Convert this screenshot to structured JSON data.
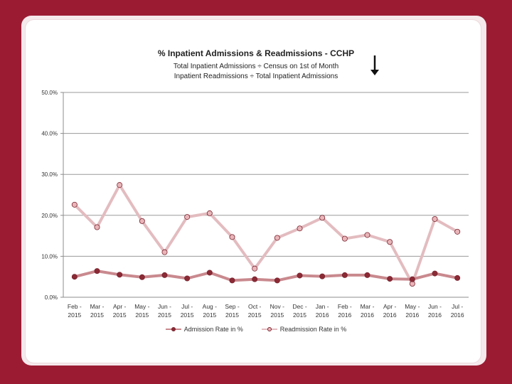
{
  "chart_data": {
    "type": "line",
    "title": "% Inpatient Admissions & Readmissions - CCHP",
    "subtitle_lines": [
      "Total Inpatient Admissions ÷ Census on 1st of Month",
      "Inpatient Readmissions ÷ Total Inpatient Admissions"
    ],
    "categories": [
      [
        "Feb -",
        "2015"
      ],
      [
        "Mar -",
        "2015"
      ],
      [
        "Apr -",
        "2015"
      ],
      [
        "May -",
        "2015"
      ],
      [
        "Jun -",
        "2015"
      ],
      [
        "Jul -",
        "2015"
      ],
      [
        "Aug -",
        "2015"
      ],
      [
        "Sep -",
        "2015"
      ],
      [
        "Oct -",
        "2015"
      ],
      [
        "Nov -",
        "2015"
      ],
      [
        "Dec -",
        "2015"
      ],
      [
        "Jan -",
        "2016"
      ],
      [
        "Feb -",
        "2016"
      ],
      [
        "Mar -",
        "2016"
      ],
      [
        "Apr -",
        "2016"
      ],
      [
        "May -",
        "2016"
      ],
      [
        "Jun -",
        "2016"
      ],
      [
        "Jul -",
        "2016"
      ]
    ],
    "yticks": [
      "0.0%",
      "10.0%",
      "20.0%",
      "30.0%",
      "40.0%",
      "50.0%"
    ],
    "ylim": [
      0,
      50
    ],
    "grid": true,
    "legend_position": "bottom",
    "series": [
      {
        "name": "Admission Rate in %",
        "values": [
          5.0,
          6.4,
          5.5,
          4.9,
          5.4,
          4.6,
          6.0,
          4.1,
          4.4,
          4.1,
          5.3,
          5.1,
          5.4,
          5.4,
          4.5,
          4.4,
          5.8,
          4.7
        ],
        "line_color": "#c9898e",
        "marker_color": "#8b2a35"
      },
      {
        "name": "Readmission Rate in %",
        "values": [
          22.6,
          17.1,
          27.4,
          18.6,
          11.0,
          19.6,
          20.5,
          14.7,
          7.0,
          14.5,
          16.8,
          19.4,
          14.3,
          15.2,
          13.5,
          3.3,
          19.1,
          16.0
        ],
        "line_color": "#e3bcc0",
        "marker_color": "#e9b5b9"
      }
    ]
  },
  "colors": {
    "background": "#9b1b33",
    "panel": "#ffffff",
    "axis": "#8c8c8c"
  },
  "decorations": {
    "arrow_icon": "down-arrow-icon"
  }
}
